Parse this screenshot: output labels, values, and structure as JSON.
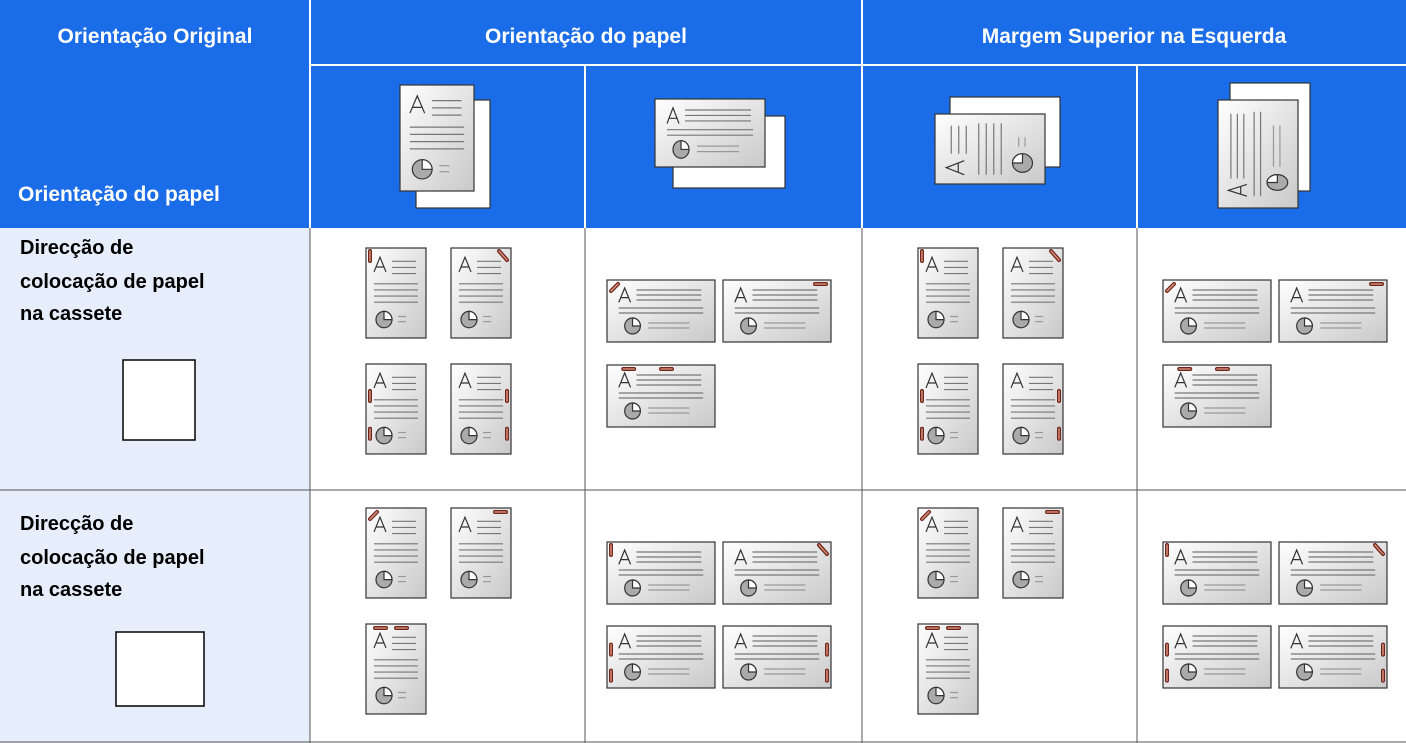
{
  "header": {
    "corner_title": "Orientação Original",
    "corner_subtitle": "Orientação do papel",
    "groups": [
      "Orientação do papel",
      "Margem Superior na Esquerda"
    ]
  },
  "rows": [
    {
      "label": [
        "Direcção de",
        "colocação de papel",
        "na cassete"
      ]
    },
    {
      "label": [
        "Direcção de",
        "colocação de papel",
        "na cassete"
      ]
    }
  ]
}
